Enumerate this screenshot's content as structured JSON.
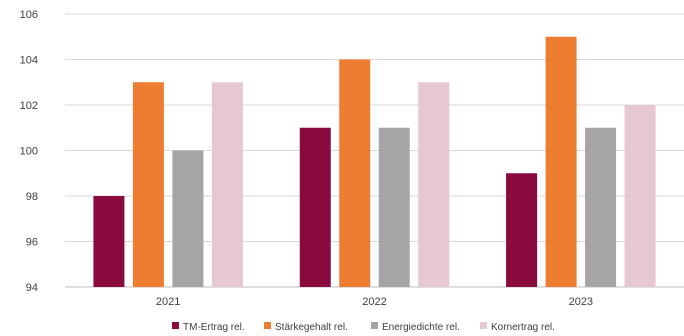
{
  "chart_data": {
    "type": "bar",
    "categories": [
      "2021",
      "2022",
      "2023"
    ],
    "series": [
      {
        "name": "TM-Ertrag rel.",
        "color": "#8B0A3E",
        "values": [
          98,
          101,
          99
        ]
      },
      {
        "name": "Stärkegehalt rel.",
        "color": "#ED7D31",
        "values": [
          103,
          104,
          105
        ]
      },
      {
        "name": "Energiedichte rel.",
        "color": "#A5A5A5",
        "values": [
          100,
          101,
          101
        ]
      },
      {
        "name": "Kornertrag rel.",
        "color": "#E6C8D0",
        "values": [
          103,
          103,
          102
        ]
      }
    ],
    "yticks": [
      "94",
      "96",
      "98",
      "100",
      "102",
      "104",
      "106"
    ],
    "ylim": [
      94,
      106
    ],
    "grid": true,
    "legend_position": "bottom"
  }
}
